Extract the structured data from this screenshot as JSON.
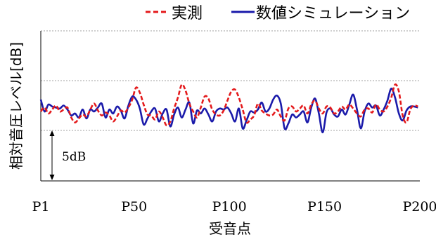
{
  "chart_data": {
    "type": "line",
    "title": "",
    "xlabel": "受音点",
    "ylabel": "相対音圧レベル[dB]",
    "x_tick_labels": [
      "P1",
      "P50",
      "P100",
      "P150",
      "P200"
    ],
    "x_tick_values": [
      1,
      50,
      100,
      150,
      200
    ],
    "xlim": [
      1,
      200
    ],
    "scale_annotation": "5dB",
    "gridlines": "dashed horizontal",
    "legend_position": "top",
    "series": [
      {
        "name": "実測",
        "color": "#e41a1c",
        "style": "dashed",
        "x": [
          1,
          3,
          5,
          7,
          9,
          11,
          13,
          15,
          17,
          19,
          21,
          23,
          25,
          27,
          29,
          31,
          33,
          35,
          37,
          39,
          41,
          43,
          45,
          47,
          49,
          51,
          53,
          55,
          57,
          59,
          61,
          63,
          65,
          67,
          69,
          71,
          73,
          75,
          77,
          79,
          81,
          83,
          85,
          87,
          89,
          91,
          93,
          95,
          97,
          99,
          101,
          103,
          105,
          107,
          109,
          111,
          113,
          115,
          117,
          119,
          121,
          123,
          125,
          127,
          129,
          131,
          133,
          135,
          137,
          139,
          141,
          143,
          145,
          147,
          149,
          151,
          153,
          155,
          157,
          159,
          161,
          163,
          165,
          167,
          169,
          171,
          173,
          175,
          177,
          179,
          181,
          183,
          185,
          187,
          189,
          191,
          193,
          195,
          197,
          199
        ],
        "y": [
          -0.6,
          -0.2,
          -0.8,
          -0.4,
          0.0,
          -0.6,
          -0.4,
          -0.2,
          -1.2,
          -1.7,
          -1.3,
          -0.9,
          -1.1,
          -0.4,
          0.2,
          -0.5,
          -1.0,
          -0.7,
          -1.0,
          -1.6,
          -1.1,
          -0.5,
          -0.7,
          -0.2,
          0.6,
          1.8,
          1.3,
          0.1,
          -0.9,
          -1.0,
          -1.4,
          -0.6,
          -1.2,
          -2.0,
          -1.6,
          -0.3,
          0.8,
          2.1,
          1.5,
          0.2,
          -0.6,
          -1.2,
          -0.2,
          0.9,
          0.7,
          -0.4,
          -0.9,
          -1.0,
          -0.5,
          0.5,
          1.4,
          1.6,
          0.8,
          -0.4,
          -1.7,
          -1.4,
          -1.0,
          0.2,
          -0.5,
          -0.8,
          -1.0,
          -0.9,
          -0.4,
          -1.1,
          -1.5,
          -0.3,
          -0.1,
          -0.6,
          -0.3,
          0.0,
          -0.8,
          0.1,
          0.5,
          -0.3,
          -0.8,
          -0.1,
          -0.2,
          -0.8,
          -0.6,
          -0.1,
          -0.4,
          0.1,
          -0.3,
          -0.8,
          -1.1,
          -0.4,
          -0.3,
          -0.7,
          0.1,
          -0.4,
          -0.6,
          -0.1,
          0.8,
          2.1,
          1.4,
          -1.0,
          -1.7,
          -0.4,
          0.0,
          -0.1
        ]
      },
      {
        "name": "数値シミュレーション",
        "color": "#1a1aaa",
        "style": "solid",
        "x": [
          1,
          3,
          5,
          7,
          9,
          11,
          13,
          15,
          17,
          19,
          21,
          23,
          25,
          27,
          29,
          31,
          33,
          35,
          37,
          39,
          41,
          43,
          45,
          47,
          49,
          51,
          53,
          55,
          57,
          59,
          61,
          63,
          65,
          67,
          69,
          71,
          73,
          75,
          77,
          79,
          81,
          83,
          85,
          87,
          89,
          91,
          93,
          95,
          97,
          99,
          101,
          103,
          105,
          107,
          109,
          111,
          113,
          115,
          117,
          119,
          121,
          123,
          125,
          127,
          129,
          131,
          133,
          135,
          137,
          139,
          141,
          143,
          145,
          147,
          149,
          151,
          153,
          155,
          157,
          159,
          161,
          163,
          165,
          167,
          169,
          171,
          173,
          175,
          177,
          179,
          181,
          183,
          185,
          187,
          189,
          191,
          193,
          195,
          197,
          199
        ],
        "y": [
          0.6,
          -0.6,
          0.1,
          -0.1,
          -0.2,
          -0.3,
          0.0,
          -0.4,
          -1.0,
          -0.8,
          -1.2,
          -0.4,
          -1.3,
          -0.4,
          -0.6,
          -0.2,
          0.2,
          -1.2,
          -0.4,
          -0.8,
          -0.1,
          -0.5,
          -1.3,
          0.0,
          0.9,
          0.6,
          -0.3,
          -1.9,
          -1.3,
          -0.6,
          -0.3,
          -1.6,
          -0.8,
          -0.4,
          -2.1,
          -0.9,
          -0.2,
          -1.2,
          -0.4,
          0.3,
          -1.8,
          -0.5,
          -0.8,
          -0.3,
          -0.9,
          -1.6,
          -0.6,
          -0.3,
          -0.4,
          -0.2,
          -0.8,
          -1.6,
          -0.3,
          -2.3,
          -1.5,
          -0.6,
          -0.7,
          -0.4,
          0.3,
          -0.6,
          -0.3,
          0.6,
          1.0,
          0.2,
          -2.3,
          -1.8,
          -0.9,
          -1.2,
          -0.9,
          -0.6,
          -1.7,
          -0.2,
          0.7,
          -0.8,
          -2.7,
          -0.7,
          -0.3,
          -0.9,
          -1.1,
          -0.4,
          -0.9,
          0.1,
          1.1,
          -0.4,
          -2.3,
          -0.6,
          0.2,
          -0.2,
          0.0,
          -1.0,
          -0.4,
          0.5,
          1.7,
          0.8,
          -0.8,
          -1.5,
          -0.5,
          -0.1,
          -0.1,
          -0.2
        ]
      }
    ]
  }
}
